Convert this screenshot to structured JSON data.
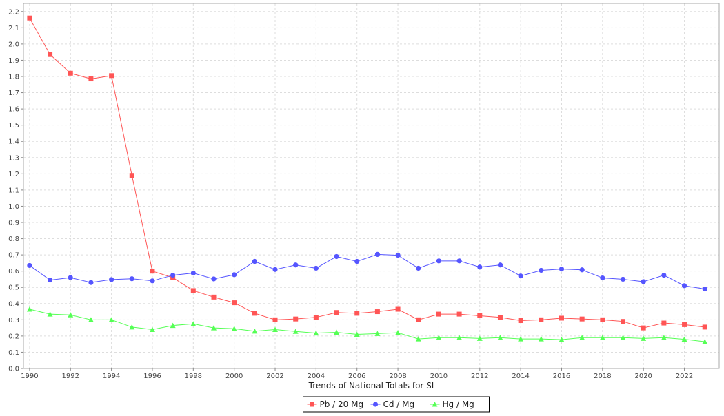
{
  "chart_data": {
    "type": "line",
    "title": "",
    "xlabel": "Trends of National Totals for SI",
    "ylabel": "",
    "xlim": [
      1989.7,
      2023.7
    ],
    "ylim": [
      0,
      2.25
    ],
    "x_ticks": [
      1990,
      1992,
      1994,
      1996,
      1998,
      2000,
      2002,
      2004,
      2006,
      2008,
      2010,
      2012,
      2014,
      2016,
      2018,
      2020,
      2022
    ],
    "y_ticks": [
      0.0,
      0.1,
      0.2,
      0.3,
      0.4,
      0.5,
      0.6,
      0.7,
      0.8,
      0.9,
      1.0,
      1.1,
      1.2,
      1.3,
      1.4,
      1.5,
      1.6,
      1.7,
      1.8,
      1.9,
      2.0,
      2.1,
      2.2
    ],
    "grid": true,
    "legend_position": "bottom-center",
    "x": [
      1990,
      1991,
      1992,
      1993,
      1994,
      1995,
      1996,
      1997,
      1998,
      1999,
      2000,
      2001,
      2002,
      2003,
      2004,
      2005,
      2006,
      2007,
      2008,
      2009,
      2010,
      2011,
      2012,
      2013,
      2014,
      2015,
      2016,
      2017,
      2018,
      2019,
      2020,
      2021,
      2022,
      2023
    ],
    "series": [
      {
        "name": "Pb / 20 Mg",
        "color": "#ff5555",
        "marker": "square",
        "values": [
          2.16,
          1.935,
          1.82,
          1.785,
          1.805,
          1.19,
          0.6,
          0.56,
          0.48,
          0.44,
          0.405,
          0.34,
          0.3,
          0.305,
          0.315,
          0.345,
          0.34,
          0.35,
          0.365,
          0.3,
          0.335,
          0.335,
          0.325,
          0.315,
          0.295,
          0.3,
          0.31,
          0.305,
          0.3,
          0.29,
          0.25,
          0.28,
          0.27,
          0.255
        ]
      },
      {
        "name": "Cd / Mg",
        "color": "#5555ff",
        "marker": "circle",
        "values": [
          0.635,
          0.545,
          0.56,
          0.53,
          0.548,
          0.553,
          0.54,
          0.575,
          0.588,
          0.552,
          0.578,
          0.66,
          0.61,
          0.638,
          0.618,
          0.69,
          0.66,
          0.703,
          0.698,
          0.618,
          0.663,
          0.663,
          0.625,
          0.638,
          0.57,
          0.605,
          0.613,
          0.608,
          0.558,
          0.55,
          0.535,
          0.575,
          0.51,
          0.49
        ]
      },
      {
        "name": "Hg / Mg",
        "color": "#55ff55",
        "marker": "triangle",
        "values": [
          0.365,
          0.335,
          0.33,
          0.3,
          0.3,
          0.255,
          0.24,
          0.265,
          0.275,
          0.25,
          0.245,
          0.23,
          0.24,
          0.228,
          0.218,
          0.223,
          0.21,
          0.215,
          0.22,
          0.182,
          0.19,
          0.19,
          0.185,
          0.19,
          0.182,
          0.182,
          0.178,
          0.19,
          0.19,
          0.19,
          0.185,
          0.19,
          0.18,
          0.165
        ]
      }
    ]
  },
  "style": {
    "grid_color": "#dddddd",
    "axis_color": "#888888",
    "plot_border_color": "#aaaaaa",
    "legend_border_color": "#000000"
  }
}
